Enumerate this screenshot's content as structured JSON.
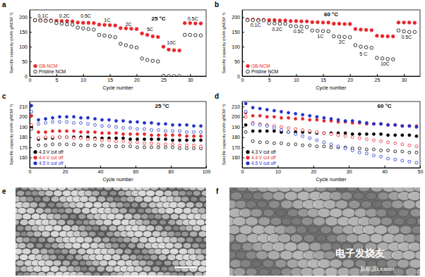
{
  "chart_data": [
    {
      "label": "a",
      "type": "scatter",
      "title": "25 °C",
      "x_label": "Cycle number",
      "y_label": "Specific capacity (mAh gNCM⁻¹)",
      "x": [
        1,
        2,
        3,
        4,
        5,
        6,
        7,
        8,
        9,
        10,
        11,
        12,
        13,
        14,
        15,
        16,
        17,
        18,
        19,
        20,
        21,
        22,
        23,
        24,
        25,
        26,
        27,
        28,
        29,
        30,
        31,
        32
      ],
      "xlim": [
        0,
        33
      ],
      "xticks": [
        0,
        5,
        10,
        15,
        20,
        25,
        30
      ],
      "ylim": [
        0,
        225
      ],
      "yticks": [
        0,
        50,
        100,
        150,
        200
      ],
      "legend": "lower left",
      "series": [
        {
          "name": "GB-NCM",
          "color": "#e8262b",
          "marker": "filled",
          "values": [
            190,
            190,
            189,
            189,
            188,
            187,
            187,
            186,
            182,
            181,
            181,
            180,
            175,
            174,
            173,
            172,
            163,
            162,
            161,
            160,
            145,
            140,
            135,
            133,
            100,
            90,
            88,
            87,
            180,
            180,
            179,
            179
          ]
        },
        {
          "name": "Pristine NCM",
          "color": "#000000",
          "marker": "open",
          "values": [
            190,
            189,
            188,
            188,
            180,
            178,
            176,
            175,
            165,
            162,
            160,
            158,
            140,
            138,
            135,
            132,
            110,
            105,
            100,
            97,
            60,
            55,
            52,
            50,
            0,
            0,
            0,
            0,
            140,
            140,
            139,
            138
          ]
        }
      ],
      "annotations": [
        {
          "text": "0.1C",
          "x": 2.5,
          "y": 199
        },
        {
          "text": "0.2C",
          "x": 6.5,
          "y": 199
        },
        {
          "text": "0.5C",
          "x": 10.5,
          "y": 199
        },
        {
          "text": "1C",
          "x": 14.5,
          "y": 185
        },
        {
          "text": "2C",
          "x": 18.5,
          "y": 170
        },
        {
          "text": "5C",
          "x": 22.5,
          "y": 152
        },
        {
          "text": "10C",
          "x": 26.5,
          "y": 108
        },
        {
          "text": "0.5C",
          "x": 30.5,
          "y": 190
        }
      ]
    },
    {
      "label": "b",
      "type": "scatter",
      "title": "60 °C",
      "x_label": "Cycle number",
      "y_label": "Specific capacity (mAh gNCM⁻¹)",
      "x": [
        1,
        2,
        3,
        4,
        5,
        6,
        7,
        8,
        9,
        10,
        11,
        12,
        13,
        14,
        15,
        16,
        17,
        18,
        19,
        20,
        21,
        22,
        23,
        24,
        25,
        26,
        27,
        28,
        29,
        30,
        31,
        32
      ],
      "xlim": [
        0,
        33
      ],
      "xticks": [
        0,
        5,
        10,
        15,
        20,
        25,
        30
      ],
      "ylim": [
        0,
        225
      ],
      "yticks": [
        0,
        50,
        100,
        150,
        200
      ],
      "legend": "lower left",
      "series": [
        {
          "name": "GB-NCM",
          "color": "#e8262b",
          "marker": "filled",
          "values": [
            192,
            192,
            191,
            191,
            190,
            190,
            189,
            189,
            187,
            187,
            186,
            186,
            183,
            183,
            182,
            182,
            178,
            178,
            177,
            177,
            160,
            158,
            157,
            156,
            137,
            136,
            135,
            135,
            182,
            182,
            182,
            181
          ]
        },
        {
          "name": "Pristine NCM",
          "color": "#000000",
          "marker": "open",
          "values": [
            190,
            190,
            189,
            189,
            180,
            179,
            178,
            178,
            170,
            169,
            168,
            167,
            155,
            154,
            153,
            152,
            135,
            134,
            133,
            132,
            105,
            100,
            98,
            96,
            62,
            60,
            58,
            57,
            155,
            152,
            150,
            150
          ]
        }
      ],
      "annotations": [
        {
          "text": "0.1C",
          "x": 2.5,
          "y": 168
        },
        {
          "text": "0.2C",
          "x": 6.5,
          "y": 154
        },
        {
          "text": "0.5C",
          "x": 10.5,
          "y": 145
        },
        {
          "text": "1C",
          "x": 14.5,
          "y": 130
        },
        {
          "text": "2C",
          "x": 18.5,
          "y": 110
        },
        {
          "text": "5 C",
          "x": 22.5,
          "y": 70
        },
        {
          "text": "10C",
          "x": 26.5,
          "y": 35
        },
        {
          "text": "0.5C",
          "x": 30.5,
          "y": 126
        }
      ]
    },
    {
      "label": "c",
      "type": "scatter",
      "title": "25 °C",
      "x_label": "Cycle number",
      "y_label": "Specific capacity (mAh gNCM⁻¹)",
      "x": [
        1,
        5,
        9,
        13,
        17,
        21,
        25,
        29,
        33,
        37,
        41,
        45,
        49,
        53,
        57,
        61,
        65,
        69,
        73,
        77,
        81,
        85,
        89,
        93,
        97
      ],
      "xlim": [
        0,
        100
      ],
      "xticks": [
        0,
        20,
        40,
        60,
        80,
        100
      ],
      "ylim": [
        150,
        215
      ],
      "yticks": [
        160,
        170,
        180,
        190,
        200,
        210
      ],
      "legend": "lower left",
      "series": [
        {
          "name": "4.3 V cut off",
          "color": "#000000",
          "marker": "filled",
          "values": [
            190,
            178,
            179,
            179,
            180,
            180,
            180,
            180,
            180,
            179,
            179,
            179,
            179,
            179,
            178,
            178,
            178,
            178,
            178,
            178,
            177,
            177,
            177,
            177,
            177
          ]
        },
        {
          "name": "4.4 V cut off",
          "color": "#e8262b",
          "marker": "filled",
          "values": [
            201,
            185,
            185,
            186,
            186,
            186,
            186,
            185,
            185,
            185,
            184,
            184,
            184,
            183,
            183,
            183,
            183,
            182,
            182,
            182,
            182,
            182,
            181,
            181,
            181
          ]
        },
        {
          "name": "4.5 V cut off",
          "color": "#2233cc",
          "marker": "filled",
          "values": [
            211,
            197,
            198,
            199,
            200,
            200,
            200,
            199,
            199,
            198,
            197,
            197,
            196,
            196,
            195,
            195,
            194,
            194,
            193,
            193,
            192,
            192,
            192,
            191,
            191
          ]
        },
        {
          "color": "#000000",
          "marker": "open",
          "values": [
            188,
            172,
            172,
            173,
            173,
            173,
            173,
            172,
            172,
            172,
            172,
            171,
            171,
            171,
            171,
            170,
            170,
            170,
            170,
            170,
            170,
            169,
            169,
            169,
            169
          ]
        },
        {
          "color": "#e8262b",
          "marker": "open",
          "values": [
            192,
            179,
            180,
            180,
            180,
            180,
            179,
            179,
            178,
            178,
            177,
            177,
            176,
            176,
            175,
            175,
            174,
            174,
            173,
            173,
            173,
            172,
            172,
            172,
            171
          ]
        },
        {
          "color": "#2233cc",
          "marker": "open",
          "values": [
            205,
            193,
            194,
            195,
            195,
            195,
            194,
            194,
            193,
            192,
            191,
            191,
            190,
            189,
            189,
            188,
            188,
            187,
            187,
            186,
            186,
            186,
            185,
            185,
            185
          ]
        }
      ]
    },
    {
      "label": "d",
      "type": "scatter",
      "title": "60 °C",
      "x_label": "Cycle number",
      "y_label": "Specific capacity (mAh gNCM⁻¹)",
      "x": [
        1,
        3,
        5,
        7,
        9,
        11,
        13,
        15,
        17,
        19,
        21,
        23,
        25,
        27,
        29,
        31,
        33,
        35,
        37,
        39,
        41,
        43,
        45,
        47,
        49
      ],
      "xlim": [
        0,
        50
      ],
      "xticks": [
        0,
        10,
        20,
        30,
        40,
        50
      ],
      "ylim": [
        150,
        215
      ],
      "yticks": [
        160,
        170,
        180,
        190,
        200,
        210
      ],
      "legend": "lower left",
      "series": [
        {
          "name": "4.3 V cut off",
          "color": "#000000",
          "marker": "filled",
          "values": [
            192,
            186,
            186,
            186,
            186,
            185,
            185,
            185,
            185,
            185,
            184,
            184,
            184,
            184,
            184,
            183,
            183,
            183,
            183,
            183,
            182,
            182,
            182,
            182,
            181
          ]
        },
        {
          "name": "4.4 V cut off",
          "color": "#e8262b",
          "marker": "filled",
          "values": [
            204,
            201,
            201,
            200,
            200,
            199,
            199,
            198,
            198,
            197,
            197,
            196,
            196,
            195,
            195,
            194,
            194,
            193,
            193,
            193,
            192,
            192,
            191,
            191,
            191
          ]
        },
        {
          "name": "4.5 V cut off",
          "color": "#2233cc",
          "marker": "filled",
          "values": [
            213,
            209,
            208,
            207,
            206,
            205,
            204,
            203,
            202,
            201,
            200,
            199,
            198,
            197,
            196,
            196,
            195,
            194,
            193,
            193,
            192,
            192,
            191,
            191,
            190
          ]
        },
        {
          "color": "#000000",
          "marker": "open",
          "values": [
            185,
            176,
            175,
            175,
            174,
            174,
            173,
            173,
            172,
            172,
            171,
            171,
            170,
            170,
            170,
            169,
            169,
            168,
            168,
            167,
            167,
            166,
            166,
            165,
            165
          ]
        },
        {
          "color": "#e8262b",
          "marker": "open",
          "values": [
            200,
            194,
            193,
            192,
            191,
            190,
            189,
            188,
            187,
            186,
            185,
            184,
            183,
            182,
            181,
            180,
            179,
            178,
            177,
            176,
            175,
            174,
            173,
            172,
            171
          ]
        },
        {
          "color": "#2233cc",
          "marker": "open",
          "values": [
            205,
            193,
            192,
            191,
            189,
            187,
            185,
            183,
            181,
            179,
            177,
            175,
            173,
            171,
            169,
            167,
            165,
            164,
            162,
            161,
            159,
            158,
            157,
            156,
            155
          ]
        }
      ]
    }
  ],
  "images": [
    {
      "label": "e"
    },
    {
      "label": "f",
      "watermark": [
        "电子发烧友",
        "新能源Leader"
      ]
    }
  ]
}
